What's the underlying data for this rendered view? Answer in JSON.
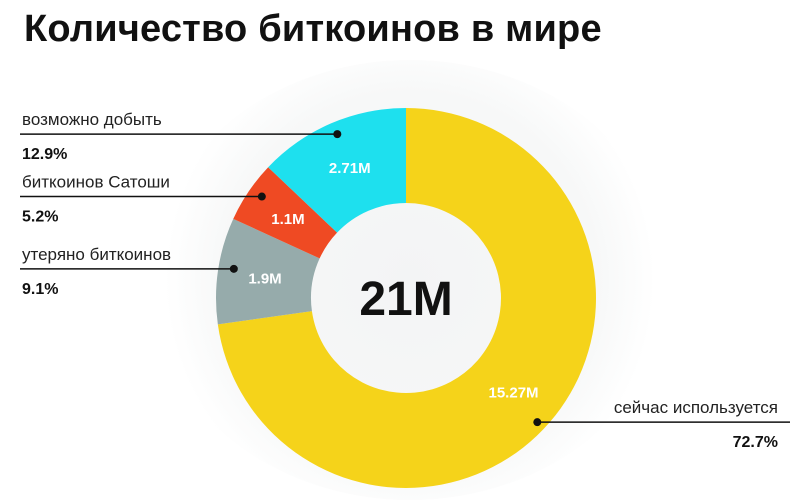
{
  "title": "Количество биткоинов в мире",
  "chart_data": {
    "type": "pie",
    "style": "donut",
    "center_label": "21M",
    "slices": [
      {
        "label": "сейчас используется",
        "value": 15.27,
        "value_label": "15.27M",
        "percent_label": "72.7%",
        "color": "#f5d31a"
      },
      {
        "label": "утеряно биткоинов",
        "value": 1.9,
        "value_label": "1.9M",
        "percent_label": "9.1%",
        "color": "#96abab"
      },
      {
        "label": "биткоинов Сатоши",
        "value": 1.1,
        "value_label": "1.1M",
        "percent_label": "5.2%",
        "color": "#ef4a23"
      },
      {
        "label": "возможно добыть",
        "value": 2.71,
        "value_label": "2.71M",
        "percent_label": "12.9%",
        "color": "#1ee0ee"
      }
    ]
  }
}
